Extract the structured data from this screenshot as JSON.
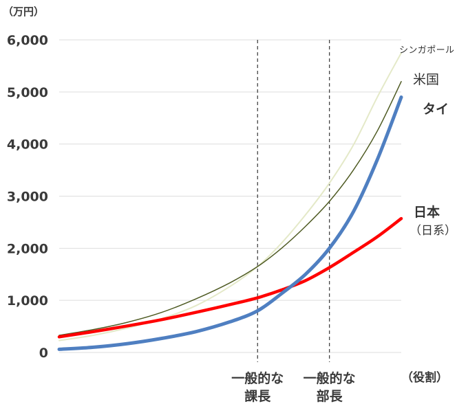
{
  "chart_data": {
    "type": "line",
    "y_unit": "（万円）",
    "x_axis_label": "（役割）",
    "ylim": [
      0,
      6000
    ],
    "yticks": [
      {
        "value": 0,
        "label": "0"
      },
      {
        "value": 1000,
        "label": "1,000"
      },
      {
        "value": 2000,
        "label": "2,000"
      },
      {
        "value": 3000,
        "label": "3,000"
      },
      {
        "value": 4000,
        "label": "4,000"
      },
      {
        "value": 5000,
        "label": "5,000"
      },
      {
        "value": 6000,
        "label": "6,000"
      }
    ],
    "grid": true,
    "xlim": [
      0,
      100
    ],
    "reference_lines": [
      {
        "x": 58,
        "label_line1": "一般的な",
        "label_line2": "課長"
      },
      {
        "x": 79,
        "label_line1": "一般的な",
        "label_line2": "部長"
      }
    ],
    "series": [
      {
        "name": "シンガポール",
        "sub": "",
        "color": "#e4e9c8",
        "width": 2,
        "label_style": "small",
        "points": [
          [
            0,
            230
          ],
          [
            10,
            330
          ],
          [
            20,
            470
          ],
          [
            30,
            650
          ],
          [
            40,
            900
          ],
          [
            50,
            1270
          ],
          [
            58,
            1650
          ],
          [
            65,
            2100
          ],
          [
            72,
            2640
          ],
          [
            79,
            3250
          ],
          [
            86,
            3980
          ],
          [
            93,
            4900
          ],
          [
            100,
            5750
          ]
        ]
      },
      {
        "name": "米国",
        "sub": "",
        "color": "#4e5a22",
        "width": 1.5,
        "label_style": "medium",
        "points": [
          [
            0,
            330
          ],
          [
            10,
            440
          ],
          [
            20,
            580
          ],
          [
            30,
            770
          ],
          [
            40,
            1030
          ],
          [
            50,
            1340
          ],
          [
            58,
            1650
          ],
          [
            65,
            2000
          ],
          [
            72,
            2420
          ],
          [
            79,
            2900
          ],
          [
            86,
            3500
          ],
          [
            93,
            4250
          ],
          [
            100,
            5200
          ]
        ]
      },
      {
        "name": "日本",
        "sub": "（日系）",
        "color": "#ff0000",
        "width": 4.5,
        "label_style": "bold",
        "points": [
          [
            0,
            300
          ],
          [
            10,
            400
          ],
          [
            20,
            510
          ],
          [
            30,
            630
          ],
          [
            40,
            770
          ],
          [
            50,
            920
          ],
          [
            58,
            1050
          ],
          [
            65,
            1200
          ],
          [
            72,
            1380
          ],
          [
            79,
            1630
          ],
          [
            86,
            1920
          ],
          [
            93,
            2220
          ],
          [
            100,
            2570
          ]
        ]
      },
      {
        "name": "タイ",
        "sub": "",
        "color": "#4f7fc1",
        "width": 5,
        "label_style": "bold",
        "points": [
          [
            0,
            60
          ],
          [
            10,
            100
          ],
          [
            20,
            170
          ],
          [
            30,
            270
          ],
          [
            40,
            400
          ],
          [
            50,
            590
          ],
          [
            58,
            800
          ],
          [
            65,
            1130
          ],
          [
            72,
            1500
          ],
          [
            79,
            2000
          ],
          [
            86,
            2700
          ],
          [
            93,
            3700
          ],
          [
            100,
            4900
          ]
        ]
      }
    ]
  }
}
